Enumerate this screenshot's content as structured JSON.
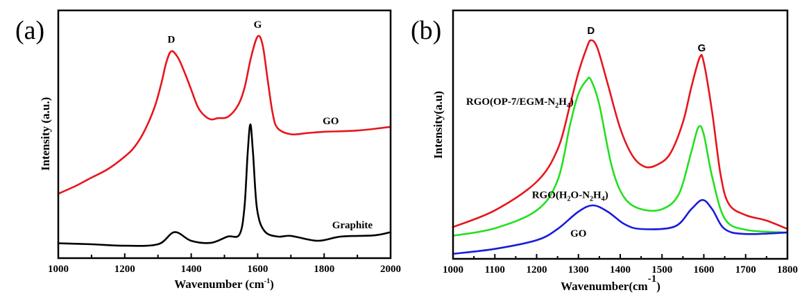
{
  "chart_data": [
    {
      "panel": "(a)",
      "type": "line",
      "title": "",
      "xlabel": "Wavenumber (cm-1)",
      "xlabel_main": "Wavenumber (cm",
      "xlabel_sup": "-1",
      "xlabel_close": ")",
      "ylabel": "Intensity (a.u.)",
      "xlim": [
        1000,
        2000
      ],
      "ylim": [
        0,
        1
      ],
      "xticks_major": [
        1000,
        1200,
        1400,
        1600,
        1800,
        2000
      ],
      "xticks_minor": [
        1100,
        1300,
        1500,
        1700,
        1900
      ],
      "grid": false,
      "annotations": [
        {
          "text": "D",
          "x": 1340,
          "y": 0.87
        },
        {
          "text": "G",
          "x": 1600,
          "y": 0.93
        },
        {
          "text": "GO",
          "x": 1820,
          "y": 0.54
        },
        {
          "text": "Graphite",
          "x": 1885,
          "y": 0.12
        }
      ],
      "series": [
        {
          "name": "GO",
          "color": "#e8141b",
          "x": [
            1000,
            1050,
            1100,
            1150,
            1200,
            1230,
            1260,
            1290,
            1310,
            1325,
            1340,
            1360,
            1380,
            1400,
            1420,
            1440,
            1460,
            1480,
            1510,
            1540,
            1560,
            1580,
            1600,
            1615,
            1630,
            1645,
            1660,
            1700,
            1750,
            1800,
            1900,
            2000
          ],
          "y": [
            0.26,
            0.29,
            0.325,
            0.36,
            0.41,
            0.45,
            0.515,
            0.61,
            0.705,
            0.79,
            0.835,
            0.81,
            0.75,
            0.68,
            0.61,
            0.575,
            0.56,
            0.565,
            0.57,
            0.615,
            0.685,
            0.81,
            0.895,
            0.86,
            0.72,
            0.585,
            0.525,
            0.5,
            0.505,
            0.51,
            0.515,
            0.53
          ]
        },
        {
          "name": "Graphite",
          "color": "#000000",
          "x": [
            1000,
            1100,
            1200,
            1300,
            1350,
            1400,
            1460,
            1510,
            1545,
            1560,
            1570,
            1578,
            1586,
            1598,
            1620,
            1660,
            1700,
            1780,
            1850,
            1950,
            2000
          ],
          "y": [
            0.06,
            0.056,
            0.05,
            0.056,
            0.105,
            0.07,
            0.062,
            0.087,
            0.095,
            0.2,
            0.425,
            0.54,
            0.425,
            0.2,
            0.11,
            0.087,
            0.09,
            0.07,
            0.087,
            0.092,
            0.105
          ]
        }
      ]
    },
    {
      "panel": "(b)",
      "type": "line",
      "title": "",
      "xlabel": "Wavenumber(cm-1)",
      "xlabel_main": "Wavenumber(cm",
      "xlabel_sup": "-1",
      "xlabel_close": ")",
      "ylabel": "Intensity(a.u)",
      "xlim": [
        1000,
        1800
      ],
      "ylim": [
        0,
        1
      ],
      "xticks_major": [
        1000,
        1100,
        1200,
        1300,
        1400,
        1500,
        1600,
        1700,
        1800
      ],
      "xticks_minor": [
        1050,
        1150,
        1250,
        1350,
        1450,
        1550,
        1650,
        1750
      ],
      "grid": false,
      "annotations": [
        {
          "text": "D",
          "x": 1330,
          "y": 0.905,
          "font": "sans"
        },
        {
          "text": "G",
          "x": 1595,
          "y": 0.835,
          "font": "sans"
        },
        {
          "text": "RGO(OP-7/EGM-N2H4)",
          "x": 1160,
          "y": 0.62,
          "parts": [
            "RGO(OP-7/EGM-N",
            "2",
            "H",
            "4",
            ")"
          ]
        },
        {
          "text": "RGO(H2O-N2H4)",
          "x": 1280,
          "y": 0.245,
          "parts": [
            "RGO(H",
            "2",
            "O-N",
            "2",
            "H",
            "4",
            ")"
          ]
        },
        {
          "text": "GO",
          "x": 1300,
          "y": 0.09
        }
      ],
      "series": [
        {
          "name": "RGO(OP-7/EGM-N2H4)",
          "color": "#e8141b",
          "x": [
            1000,
            1100,
            1200,
            1250,
            1280,
            1300,
            1320,
            1330,
            1345,
            1370,
            1400,
            1430,
            1460,
            1490,
            1520,
            1550,
            1570,
            1590,
            1600,
            1620,
            1640,
            1660,
            1700,
            1750,
            1800
          ],
          "y": [
            0.128,
            0.195,
            0.31,
            0.44,
            0.62,
            0.75,
            0.85,
            0.88,
            0.85,
            0.705,
            0.525,
            0.413,
            0.37,
            0.38,
            0.425,
            0.55,
            0.69,
            0.81,
            0.79,
            0.59,
            0.34,
            0.22,
            0.176,
            0.154,
            0.12
          ]
        },
        {
          "name": "RGO(H2O-N2H4)",
          "color": "#22e01e",
          "x": [
            1000,
            1100,
            1200,
            1250,
            1280,
            1300,
            1320,
            1330,
            1350,
            1380,
            1410,
            1450,
            1500,
            1540,
            1570,
            1587,
            1600,
            1620,
            1650,
            1700,
            1800
          ],
          "y": [
            0.093,
            0.123,
            0.195,
            0.315,
            0.54,
            0.665,
            0.72,
            0.72,
            0.62,
            0.37,
            0.246,
            0.2,
            0.2,
            0.26,
            0.43,
            0.53,
            0.5,
            0.33,
            0.162,
            0.117,
            0.106
          ]
        },
        {
          "name": "GO",
          "color": "#1a1adc",
          "x": [
            1000,
            1100,
            1200,
            1250,
            1300,
            1335,
            1370,
            1410,
            1450,
            1530,
            1570,
            1597,
            1620,
            1650,
            1700,
            1800
          ],
          "y": [
            0.02,
            0.04,
            0.075,
            0.12,
            0.19,
            0.215,
            0.19,
            0.14,
            0.12,
            0.13,
            0.2,
            0.237,
            0.2,
            0.12,
            0.1,
            0.106
          ]
        }
      ]
    }
  ]
}
